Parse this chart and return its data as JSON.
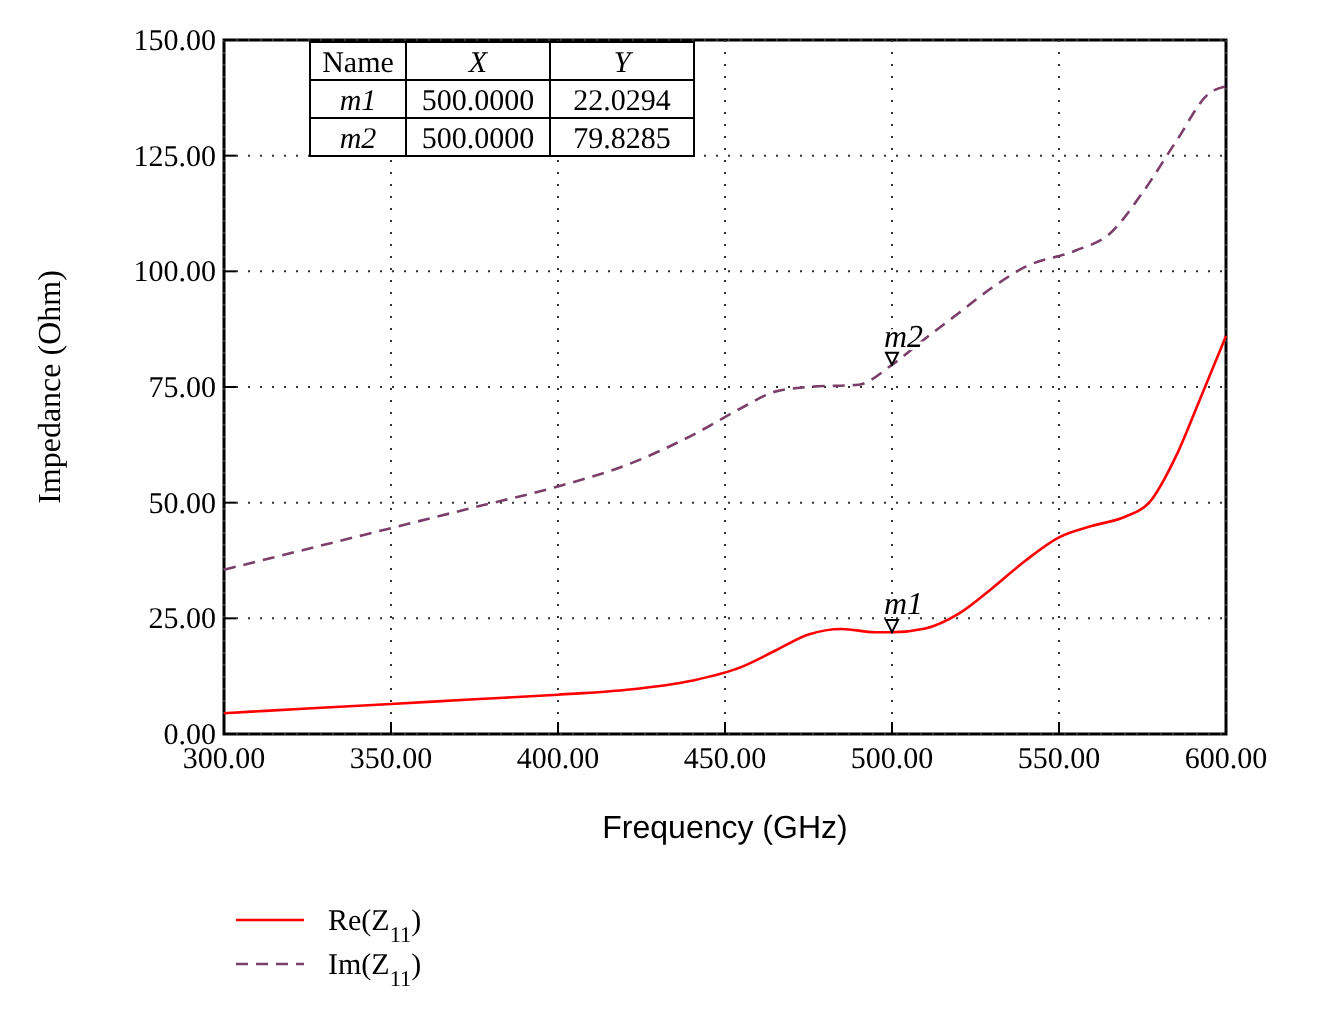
{
  "chart_data": {
    "type": "line",
    "xlabel": "Frequency (GHz)",
    "ylabel": "Impedance (Ohm)",
    "xlim": [
      300,
      600
    ],
    "xticks": [
      {
        "value": 300,
        "label": "300.00"
      },
      {
        "value": 350,
        "label": "350.00"
      },
      {
        "value": 400,
        "label": "400.00"
      },
      {
        "value": 450,
        "label": "450.00"
      },
      {
        "value": 500,
        "label": "500.00"
      },
      {
        "value": 550,
        "label": "550.00"
      },
      {
        "value": 600,
        "label": "600.00"
      }
    ],
    "ylim": [
      0,
      150
    ],
    "yticks": [
      {
        "value": 0,
        "label": "0.00"
      },
      {
        "value": 25,
        "label": "25.00"
      },
      {
        "value": 50,
        "label": "50.00"
      },
      {
        "value": 75,
        "label": "75.00"
      },
      {
        "value": 100,
        "label": "100.00"
      },
      {
        "value": 125,
        "label": "125.00"
      },
      {
        "value": 150,
        "label": "150.00"
      }
    ],
    "grid": true,
    "legend": "bottom left",
    "series": [
      {
        "name": "Re(Z$_{11}$)",
        "color": "#ff0000",
        "line_style": "solid",
        "x": [
          300,
          325,
          350,
          375,
          400,
          420,
          440,
          455,
          465,
          475,
          485,
          495,
          500,
          510,
          520,
          530,
          540,
          550,
          560,
          570,
          577,
          585,
          592,
          600
        ],
        "values": [
          4.5,
          5.5,
          6.5,
          7.5,
          8.5,
          9.5,
          11.5,
          14.5,
          18,
          21.5,
          22.7,
          22,
          22,
          22.8,
          26,
          31.5,
          37.5,
          42.5,
          45,
          47,
          50,
          60,
          72,
          86
        ]
      },
      {
        "name": "Im(Z$_{11}$)",
        "color": "#7b3f6a",
        "line_style": "dashed",
        "x": [
          300,
          325,
          350,
          375,
          400,
          420,
          440,
          455,
          465,
          475,
          490,
          500,
          510,
          520,
          530,
          540,
          555,
          565,
          575,
          585,
          595,
          600
        ],
        "values": [
          35.5,
          40,
          44.5,
          49,
          53.5,
          58,
          64.5,
          70.5,
          74,
          75,
          75.5,
          79.8,
          85.5,
          91,
          96.5,
          101,
          104.5,
          108,
          117,
          128,
          138.5,
          140
        ]
      }
    ],
    "annotations": [
      "Name",
      "X",
      "Y",
      "m1",
      "500.0000",
      "22.0294",
      "m2",
      "500.0000",
      "79.8285",
      {
        "text": "m1",
        "x": 500,
        "y": 22.0294
      },
      {
        "text": "m2",
        "x": 500,
        "y": 79.8285
      }
    ]
  }
}
